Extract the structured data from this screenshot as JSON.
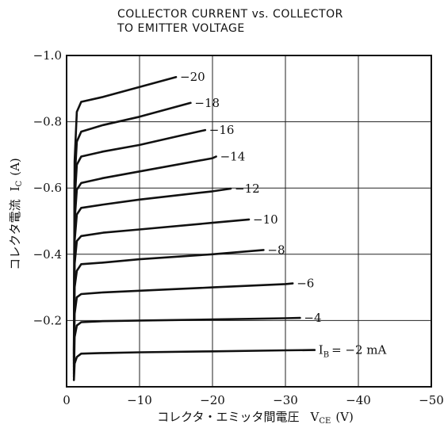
{
  "chart_data": {
    "type": "line",
    "title": "COLLECTOR CURRENT vs. COLLECTOR TO EMITTER VOLTAGE",
    "title_lines": [
      "COLLECTOR CURRENT vs. COLLECTOR",
      "TO EMITTER VOLTAGE"
    ],
    "xlabel": "コレクタ・エミッタ間電圧　V_CE (V)",
    "xlabel_parts": {
      "text": "コレクタ・エミッタ間電圧",
      "symbol": "V",
      "subscript": "CE",
      "unit": "(V)"
    },
    "ylabel": "コレクタ電流　I_C (A)",
    "ylabel_parts": {
      "text": "コレクタ電流",
      "symbol": "I",
      "subscript": "C",
      "unit": "(A)"
    },
    "xlim": [
      0,
      -50
    ],
    "ylim": [
      0,
      -1.0
    ],
    "x_ticks": [
      {
        "value": 0,
        "label": "0"
      },
      {
        "value": -10,
        "label": "−10"
      },
      {
        "value": -20,
        "label": "−20"
      },
      {
        "value": -30,
        "label": "−30"
      },
      {
        "value": -40,
        "label": "−40"
      },
      {
        "value": -50,
        "label": "−50"
      }
    ],
    "y_ticks": [
      {
        "value": -0.2,
        "label": "−0.2"
      },
      {
        "value": -0.4,
        "label": "−0.4"
      },
      {
        "value": -0.6,
        "label": "−0.6"
      },
      {
        "value": -0.8,
        "label": "−0.8"
      },
      {
        "value": -1.0,
        "label": "−1.0"
      }
    ],
    "grid": true,
    "series": [
      {
        "ib": -2,
        "label": "I_B = −2 mA",
        "label_parts": {
          "symbol": "I",
          "subscript": "B",
          "rest": "= −2 mA"
        },
        "x": [
          -1,
          -1.1,
          -1.4,
          -2,
          -5,
          -10,
          -20,
          -30,
          -34
        ],
        "y": [
          -0.02,
          -0.07,
          -0.09,
          -0.1,
          -0.102,
          -0.104,
          -0.107,
          -0.11,
          -0.111
        ]
      },
      {
        "ib": -4,
        "label": "−4",
        "x": [
          -1,
          -1.1,
          -1.4,
          -2,
          -5,
          -10,
          -20,
          -30,
          -32
        ],
        "y": [
          -0.03,
          -0.15,
          -0.185,
          -0.195,
          -0.198,
          -0.2,
          -0.203,
          -0.207,
          -0.208
        ]
      },
      {
        "ib": -6,
        "label": "−6",
        "x": [
          -1,
          -1.1,
          -1.4,
          -2,
          -5,
          -10,
          -20,
          -30,
          -31
        ],
        "y": [
          -0.04,
          -0.22,
          -0.27,
          -0.28,
          -0.285,
          -0.29,
          -0.3,
          -0.31,
          -0.312
        ]
      },
      {
        "ib": -8,
        "label": "−8",
        "x": [
          -1,
          -1.1,
          -1.4,
          -2,
          -5,
          -10,
          -20,
          -27
        ],
        "y": [
          -0.05,
          -0.3,
          -0.35,
          -0.37,
          -0.375,
          -0.385,
          -0.4,
          -0.413
        ]
      },
      {
        "ib": -10,
        "label": "−10",
        "x": [
          -1,
          -1.1,
          -1.4,
          -2,
          -5,
          -10,
          -20,
          -25
        ],
        "y": [
          -0.06,
          -0.37,
          -0.44,
          -0.455,
          -0.465,
          -0.475,
          -0.495,
          -0.505
        ]
      },
      {
        "ib": -12,
        "label": "−12",
        "x": [
          -1,
          -1.1,
          -1.4,
          -2,
          -5,
          -10,
          -20,
          -22.5
        ],
        "y": [
          -0.07,
          -0.44,
          -0.52,
          -0.54,
          -0.55,
          -0.565,
          -0.59,
          -0.598
        ]
      },
      {
        "ib": -14,
        "label": "−14",
        "x": [
          -1,
          -1.1,
          -1.4,
          -2,
          -5,
          -10,
          -20,
          -20.5
        ],
        "y": [
          -0.08,
          -0.5,
          -0.595,
          -0.615,
          -0.63,
          -0.65,
          -0.69,
          -0.695
        ]
      },
      {
        "ib": -16,
        "label": "−16",
        "x": [
          -1,
          -1.1,
          -1.4,
          -2,
          -5,
          -10,
          -15,
          -19
        ],
        "y": [
          -0.09,
          -0.56,
          -0.67,
          -0.695,
          -0.71,
          -0.73,
          -0.755,
          -0.775
        ]
      },
      {
        "ib": -18,
        "label": "−18",
        "x": [
          -1,
          -1.1,
          -1.4,
          -2,
          -5,
          -10,
          -15,
          -17
        ],
        "y": [
          -0.1,
          -0.62,
          -0.74,
          -0.77,
          -0.79,
          -0.815,
          -0.845,
          -0.857
        ]
      },
      {
        "ib": -20,
        "label": "−20",
        "x": [
          -1,
          -1.1,
          -1.4,
          -2,
          -5,
          -10,
          -15
        ],
        "y": [
          -0.11,
          -0.68,
          -0.83,
          -0.86,
          -0.875,
          -0.905,
          -0.935
        ]
      }
    ]
  }
}
